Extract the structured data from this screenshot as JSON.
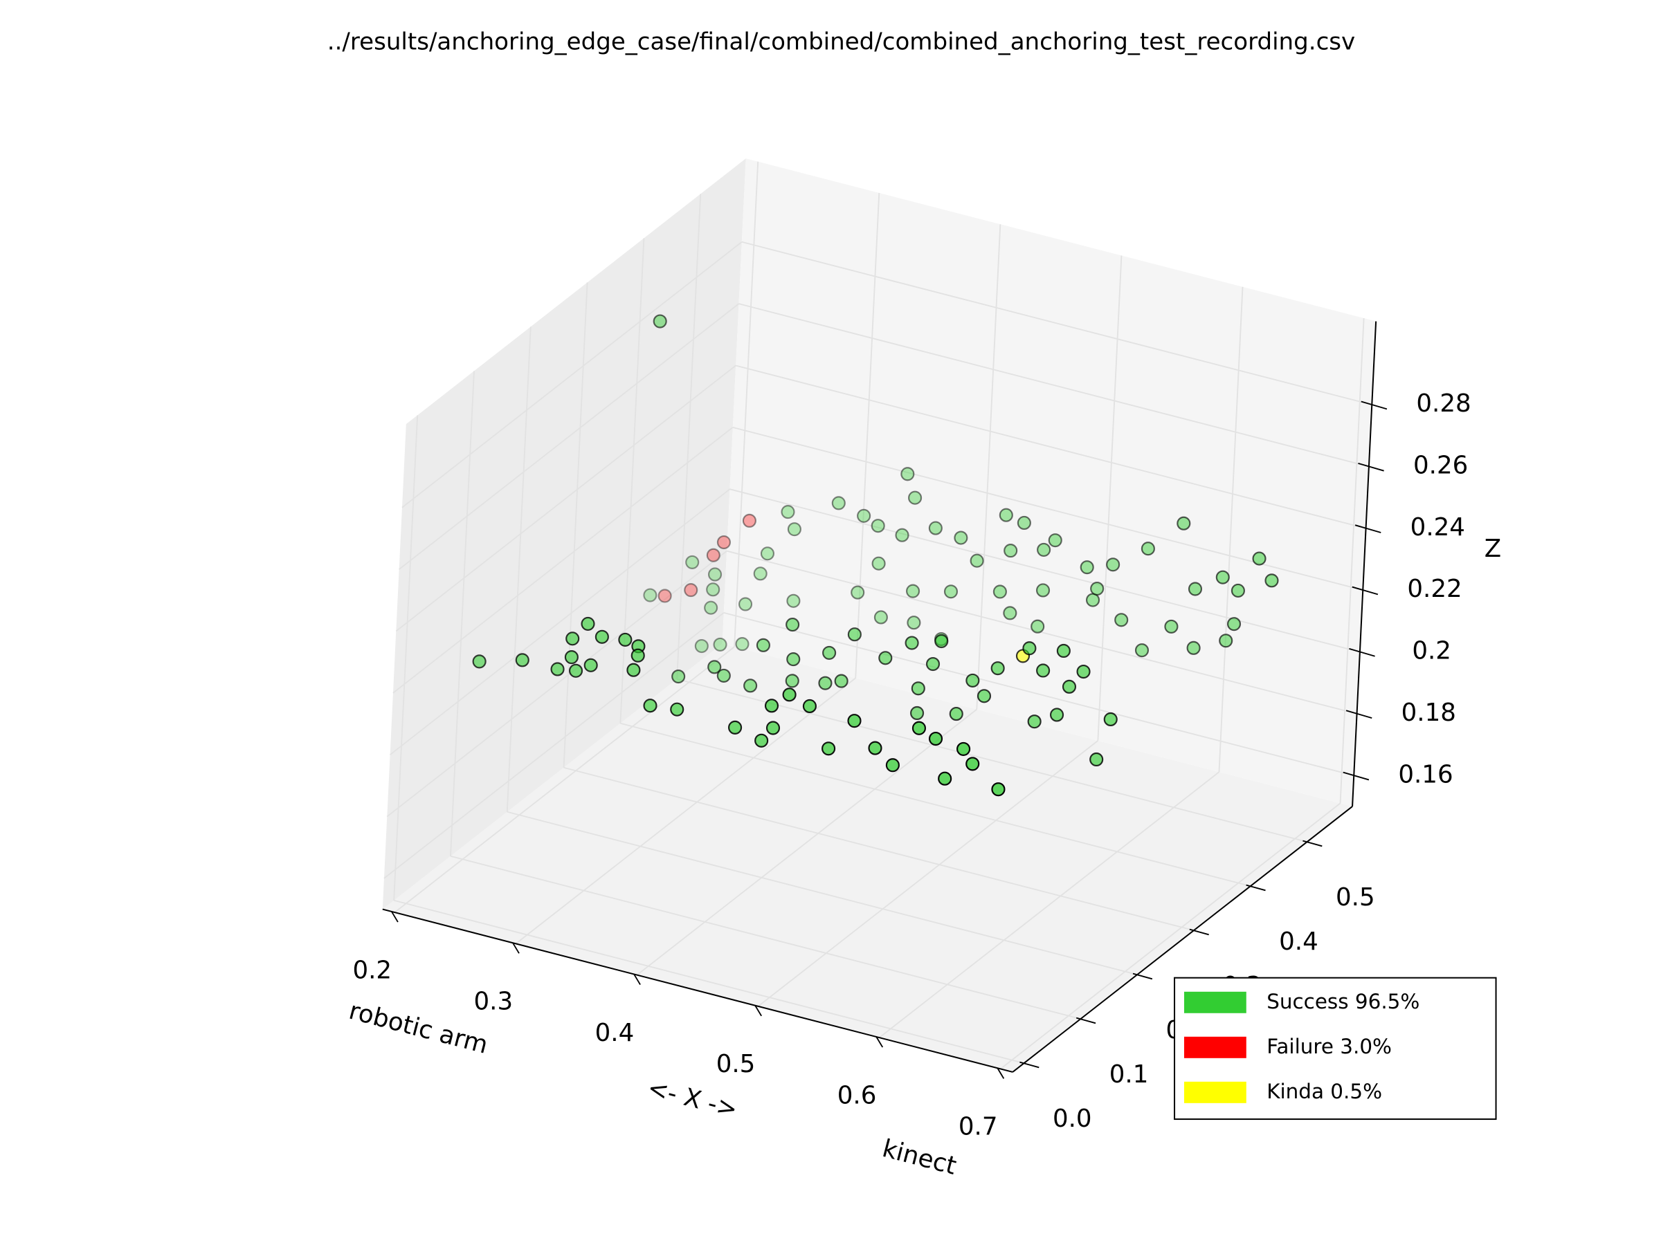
{
  "chart_data": {
    "type": "scatter3d",
    "title": "../results/anchoring_edge_case/final/combined/combined_anchoring_test_recording.csv",
    "xlabel": [
      "robotic arm",
      "<- X ->",
      "kinect"
    ],
    "zlabel": "Z",
    "xlim": [
      0.19,
      0.71
    ],
    "ylim": [
      -0.02,
      0.58
    ],
    "zlim": [
      0.15,
      0.307
    ],
    "xticks": [
      0.2,
      0.3,
      0.4,
      0.5,
      0.6,
      0.7
    ],
    "yticks": [
      {
        "value": 0,
        "label": "0.0"
      },
      0.1,
      0.2,
      0.3,
      0.4,
      0.5
    ],
    "zticks": [
      0.16,
      0.18,
      0.2,
      0.22,
      0.24,
      0.26,
      0.28
    ],
    "grid": true,
    "depthshade": true,
    "legend": "lower right",
    "series": [
      {
        "name": "Success 96.5%",
        "color": "#32cd32",
        "x": [
          0.656,
          0.612,
          0.634,
          0.569,
          0.554,
          0.516,
          0.461,
          0.439,
          0.391,
          0.369,
          0.468,
          0.482,
          0.499,
          0.536,
          0.589,
          0.603,
          0.626,
          0.47,
          0.228,
          0.263,
          0.292,
          0.307,
          0.319,
          0.303,
          0.354,
          0.303,
          0.315,
          0.327,
          0.346,
          0.357,
          0.357,
          0.53,
          0.552,
          0.594,
          0.612,
          0.656,
          0.646,
          0.621,
          0.599,
          0.632,
          0.542,
          0.498,
          0.498,
          0.422,
          0.435,
          0.395,
          0.361,
          0.395,
          0.339,
          0.302,
          0.331,
          0.47,
          0.509,
          0.424,
          0.491,
          0.515,
          0.562,
          0.587,
          0.615,
          0.37,
          0.393,
          0.444,
          0.273,
          0.231,
          0.246,
          0.264,
          0.237,
          0.265,
          0.238,
          0.239,
          0.22,
          0.187,
          0.296,
          0.302,
          0.281,
          0.304,
          0.337,
          0.358,
          0.37,
          0.39,
          0.392,
          0.399,
          0.417,
          0.438,
          0.474,
          0.489,
          0.515,
          0.542,
          0.563,
          0.591,
          0.619,
          0.653,
          0.682,
          0.693,
          0.666,
          0.631,
          0.664,
          0.658,
          0.632,
          0.613,
          0.59,
          0.572,
          0.548,
          0.452,
          0.479,
          0.506,
          0.372,
          0.356,
          0.401,
          0.432,
          0.472,
          0.507,
          0.551,
          0.481,
          0.504,
          0.403,
          0.426,
          0.376,
          0.276
        ],
        "y": [
          0.05,
          0.05,
          0.05,
          0.05,
          0.05,
          0.05,
          0.05,
          0.05,
          0.05,
          0.05,
          0.05,
          0.05,
          0.05,
          0.05,
          0.05,
          0.05,
          0.05,
          0.05,
          0.05,
          0.05,
          0.05,
          0.05,
          0.05,
          0.05,
          0.05,
          0.05,
          0.05,
          0.05,
          0.05,
          0.05,
          0.05,
          0.25,
          0.25,
          0.25,
          0.25,
          0.25,
          0.25,
          0.25,
          0.25,
          0.25,
          0.25,
          0.25,
          0.25,
          0.25,
          0.25,
          0.25,
          0.25,
          0.25,
          0.25,
          0.25,
          0.25,
          0.25,
          0.25,
          0.25,
          0.25,
          0.25,
          0.25,
          0.25,
          0.25,
          0.25,
          0.25,
          0.25,
          0.25,
          0.45,
          0.45,
          0.45,
          0.45,
          0.45,
          0.45,
          0.45,
          0.45,
          0.45,
          0.45,
          0.45,
          0.45,
          0.45,
          0.45,
          0.45,
          0.45,
          0.45,
          0.45,
          0.45,
          0.45,
          0.45,
          0.45,
          0.45,
          0.45,
          0.45,
          0.45,
          0.45,
          0.45,
          0.45,
          0.45,
          0.45,
          0.45,
          0.45,
          0.45,
          0.45,
          0.45,
          0.45,
          0.45,
          0.45,
          0.45,
          0.45,
          0.45,
          0.45,
          0.45,
          0.45,
          0.45,
          0.45,
          0.45,
          0.45,
          0.45,
          0.45,
          0.45,
          0.45,
          0.45,
          0.45,
          0.45
        ],
        "z": [
          0.226,
          0.225,
          0.232,
          0.225,
          0.229,
          0.225,
          0.222,
          0.224,
          0.225,
          0.224,
          0.234,
          0.239,
          0.237,
          0.236,
          0.239,
          0.237,
          0.236,
          0.227,
          0.224,
          0.228,
          0.228,
          0.229,
          0.232,
          0.233,
          0.234,
          0.239,
          0.245,
          0.242,
          0.243,
          0.242,
          0.239,
          0.209,
          0.217,
          0.213,
          0.217,
          0.22,
          0.206,
          0.227,
          0.23,
          0.233,
          0.221,
          0.214,
          0.206,
          0.208,
          0.21,
          0.206,
          0.201,
          0.213,
          0.202,
          0.198,
          0.204,
          0.221,
          0.223,
          0.218,
          0.228,
          0.231,
          0.227,
          0.236,
          0.238,
          0.215,
          0.224,
          0.226,
          0.31,
          0.172,
          0.174,
          0.176,
          0.185,
          0.189,
          0.191,
          0.196,
          0.198,
          0.184,
          0.222,
          0.217,
          0.207,
          0.194,
          0.229,
          0.227,
          0.225,
          0.224,
          0.244,
          0.237,
          0.229,
          0.228,
          0.239,
          0.238,
          0.235,
          0.229,
          0.232,
          0.24,
          0.251,
          0.237,
          0.246,
          0.24,
          0.234,
          0.231,
          0.223,
          0.217,
          0.212,
          0.217,
          0.207,
          0.215,
          0.219,
          0.222,
          0.228,
          0.231,
          0.213,
          0.202,
          0.207,
          0.21,
          0.214,
          0.218,
          0.223,
          0.208,
          0.206,
          0.197,
          0.194,
          0.196,
          0.2
        ]
      },
      {
        "name": "Failure 3.0%",
        "color": "#ff0000",
        "x": [
          0.265,
          0.245,
          0.237,
          0.22,
          0.199
        ],
        "y": [
          0.45,
          0.45,
          0.45,
          0.45,
          0.45
        ],
        "z": [
          0.216,
          0.207,
          0.202,
          0.189,
          0.185
        ]
      },
      {
        "name": "Kinda 0.5%",
        "color": "#ffff00",
        "x": [
          0.582
        ],
        "y": [
          0.25
        ],
        "z": [
          0.233
        ]
      }
    ]
  }
}
